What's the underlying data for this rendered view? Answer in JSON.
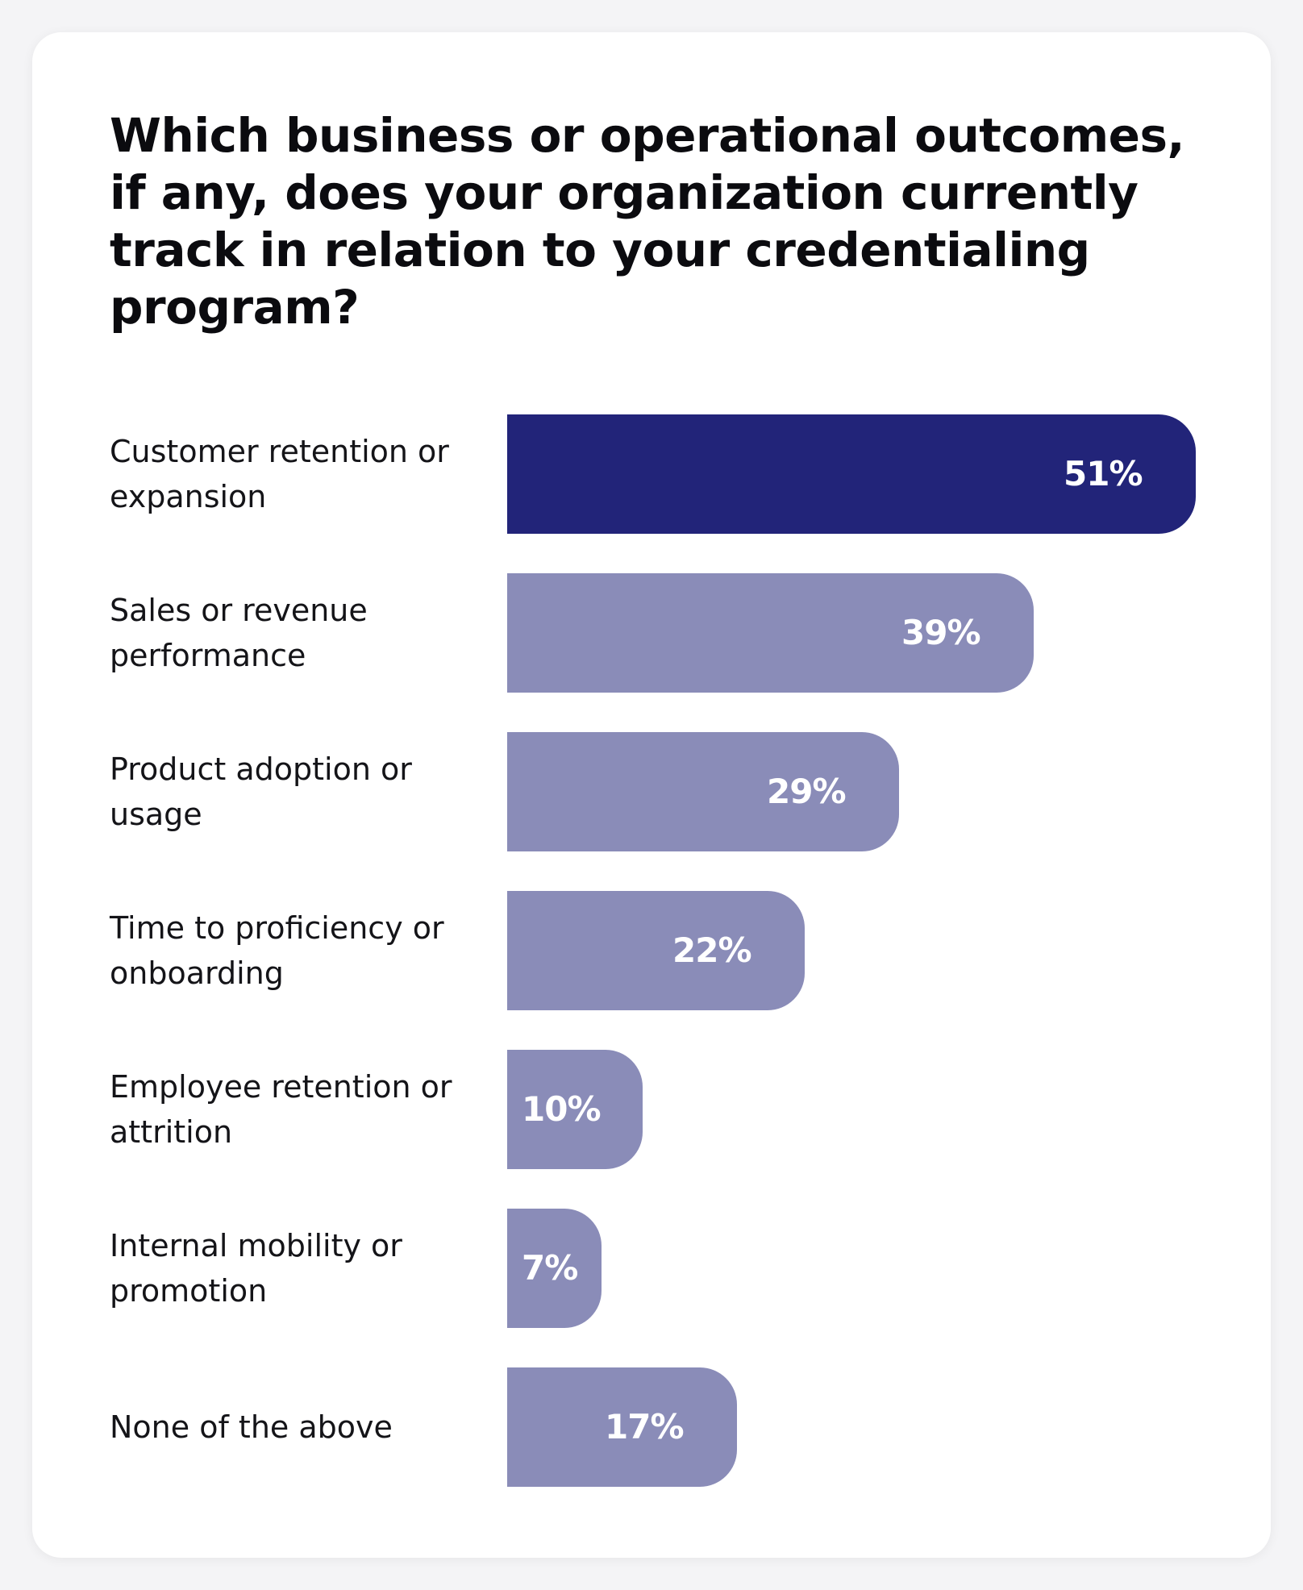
{
  "chart_data": {
    "type": "bar",
    "orientation": "horizontal",
    "title": "Which business or operational outcomes, if any, does your organization currently track in relation to your credentialing program?",
    "categories": [
      "Customer retention or expansion",
      "Sales or revenue performance",
      "Product adoption or usage",
      "Time to proficiency or onboarding",
      "Employee retention or attrition",
      "Internal mobility or promotion",
      "None of the above"
    ],
    "values": [
      51,
      39,
      29,
      22,
      10,
      7,
      17
    ],
    "value_labels": [
      "51%",
      "39%",
      "29%",
      "22%",
      "10%",
      "7%",
      "17%"
    ],
    "unit": "%",
    "highlight_index": 0,
    "colors": {
      "highlight": "#222479",
      "default": "#8a8cb8",
      "value_text": "#ffffff"
    }
  }
}
